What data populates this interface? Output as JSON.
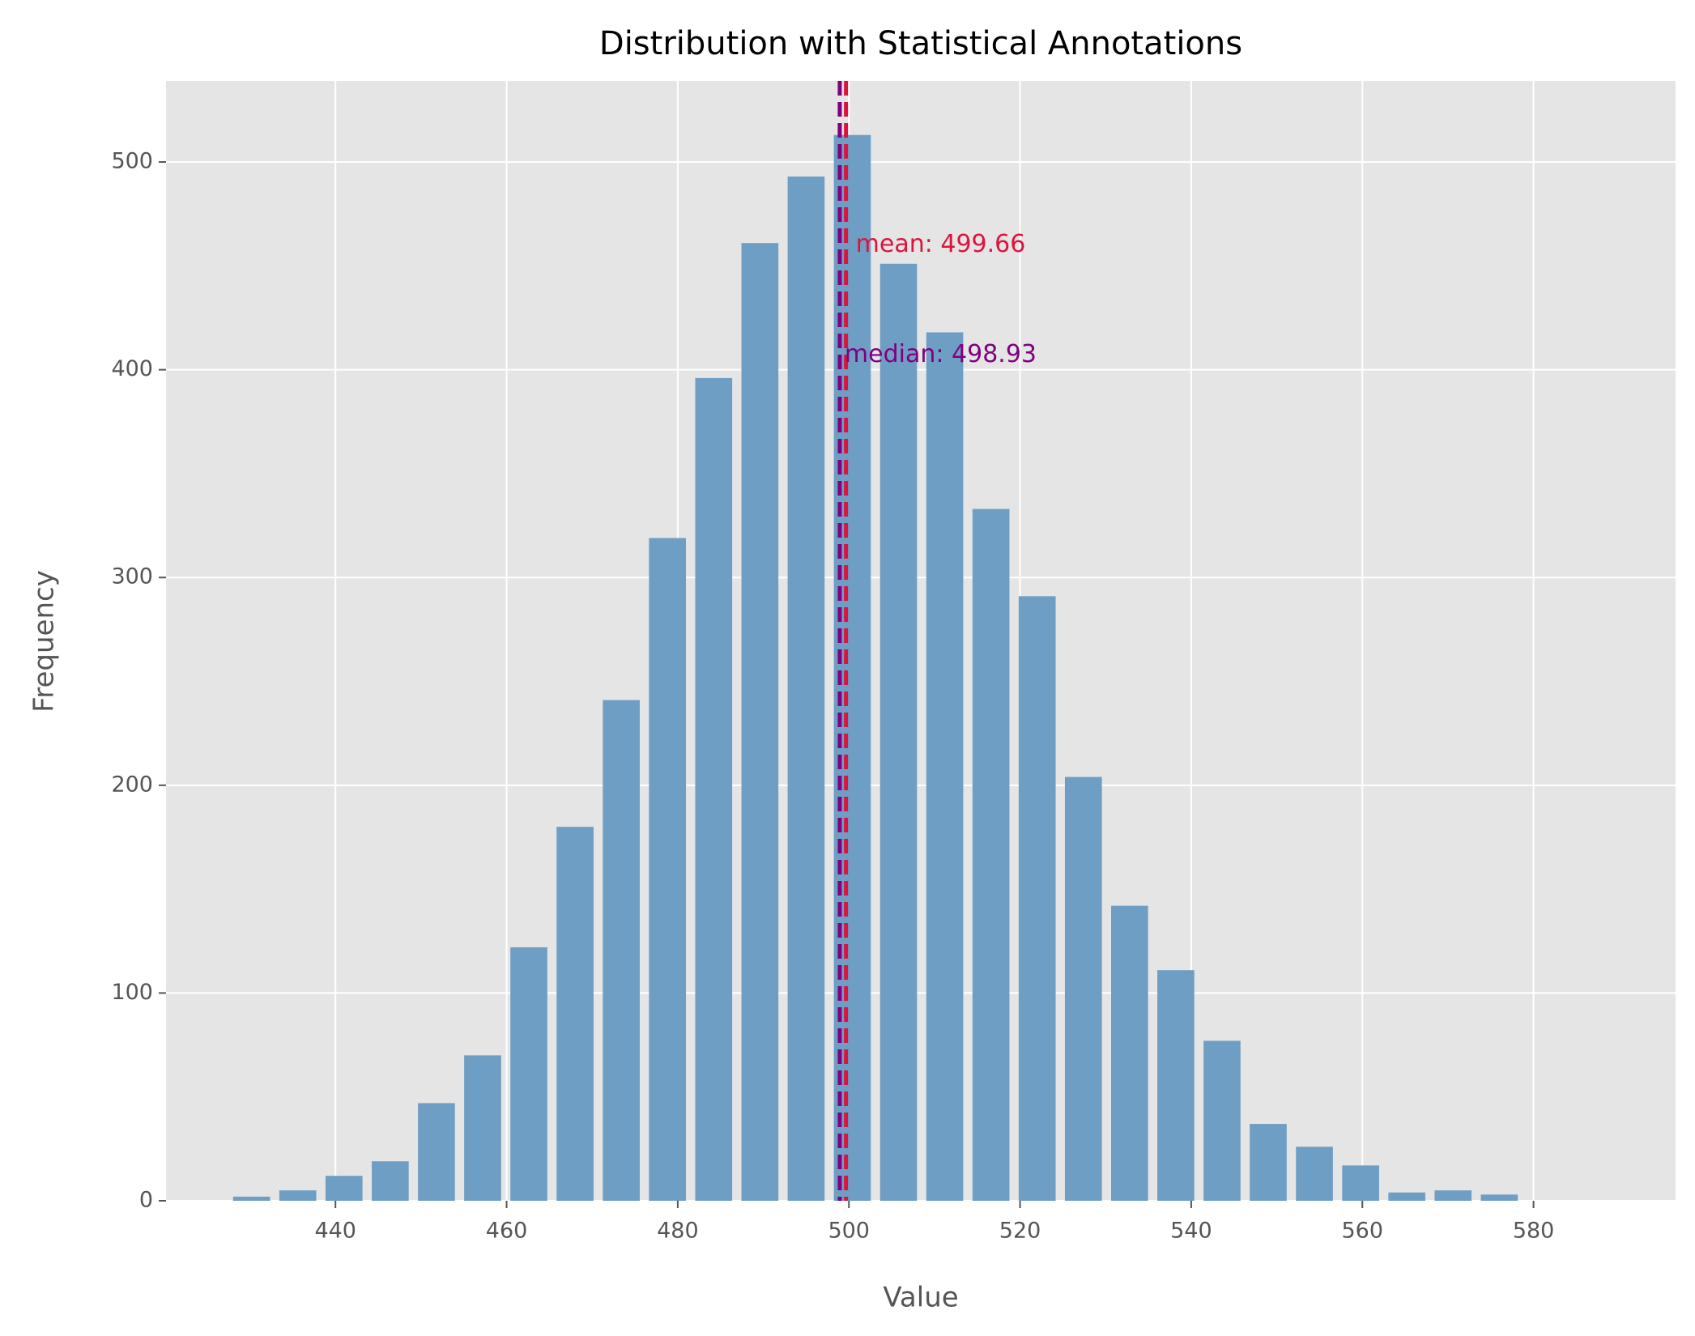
{
  "chart_data": {
    "type": "histogram",
    "title": "Distribution with Statistical Annotations",
    "x_label": "Value",
    "y_label": "Frequency",
    "bins": [
      427.5,
      432.9,
      438.3,
      443.7,
      449.1,
      454.5,
      459.9,
      465.3,
      470.7,
      476.1,
      481.5,
      486.9,
      492.3,
      497.7,
      503.1,
      508.5,
      513.9,
      519.3,
      524.7,
      530.1,
      535.5,
      540.9,
      546.3,
      551.7,
      557.1,
      562.5,
      567.9,
      573.3,
      578.7
    ],
    "values": [
      2,
      5,
      12,
      19,
      47,
      70,
      122,
      180,
      241,
      319,
      396,
      461,
      493,
      513,
      451,
      418,
      333,
      291,
      204,
      142,
      111,
      77,
      37,
      26,
      17,
      4,
      5,
      3
    ],
    "color": "#6f9ec4",
    "xlim": [
      420.2,
      596.6
    ],
    "xticks": [
      440,
      460,
      480,
      500,
      520,
      540,
      560,
      580
    ],
    "ylim": [
      0,
      539
    ],
    "yticks": [
      0,
      100,
      200,
      300,
      400,
      500
    ],
    "grid": true,
    "annotations": [
      {
        "text": "mean: 499.66",
        "value": 499.66,
        "color": "#dc143c"
      },
      {
        "text": "median: 498.93",
        "value": 498.93,
        "color": "#800080"
      }
    ]
  }
}
